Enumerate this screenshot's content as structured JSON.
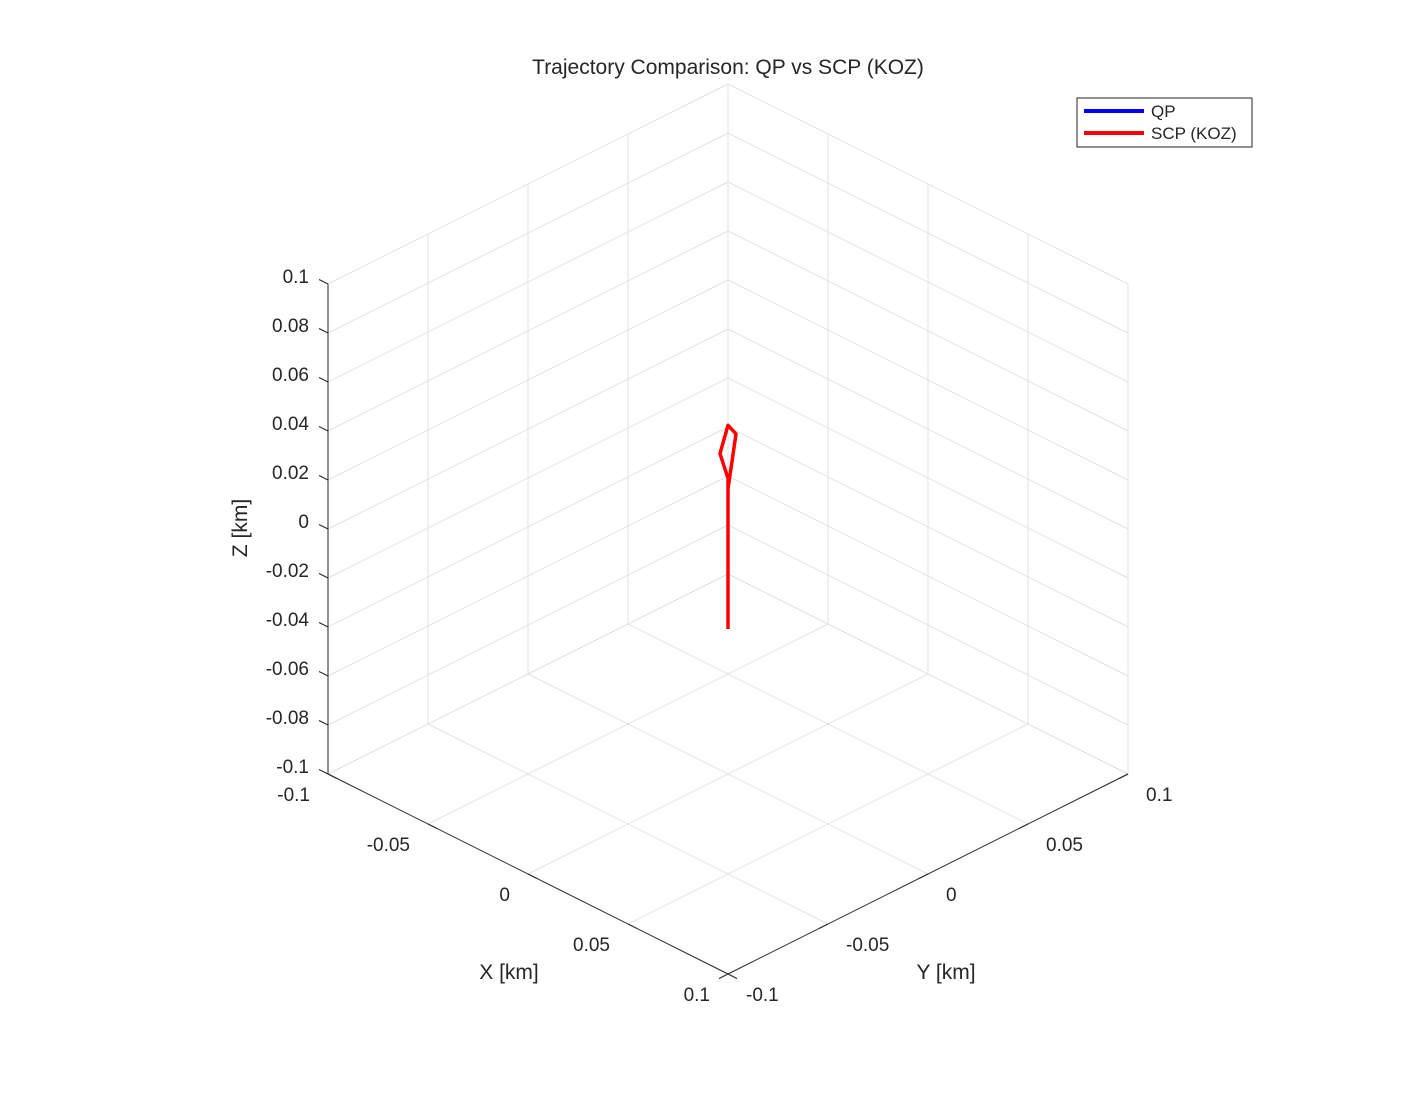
{
  "chart_data": {
    "type": "line",
    "projection": "3d",
    "title": "Trajectory Comparison: QP vs SCP (KOZ)",
    "xlabel": "X [km]",
    "ylabel": "Y [km]",
    "zlabel": "Z [km]",
    "xlim": [
      -0.1,
      0.1
    ],
    "ylim": [
      -0.1,
      0.1
    ],
    "zlim": [
      -0.1,
      0.1
    ],
    "xticks": [
      -0.1,
      -0.05,
      0,
      0.05,
      0.1
    ],
    "yticks": [
      -0.1,
      -0.05,
      0,
      0.05,
      0.1
    ],
    "zticks": [
      -0.1,
      -0.08,
      -0.06,
      -0.04,
      -0.02,
      0,
      0.02,
      0.04,
      0.06,
      0.08,
      0.1
    ],
    "xtick_labels": [
      "-0.1",
      "-0.05",
      "0",
      "0.05",
      "0.1"
    ],
    "ytick_labels": [
      "-0.1",
      "-0.05",
      "0",
      "0.05",
      "0.1"
    ],
    "ztick_labels": [
      "-0.1",
      "-0.08",
      "-0.06",
      "-0.04",
      "-0.02",
      "0",
      "0.02",
      "0.04",
      "0.06",
      "0.08",
      "0.1"
    ],
    "grid": true,
    "legend_position": "top-right",
    "series": [
      {
        "name": "QP",
        "color": "#0000ff",
        "points": []
      },
      {
        "name": "SCP (KOZ)",
        "color": "#ff0000",
        "points": [
          {
            "x": 0.05,
            "y": -0.05,
            "z": 0.0
          },
          {
            "x": 0.0,
            "y": 0.0,
            "z": 0.0
          },
          {
            "x": -0.02,
            "y": 0.02,
            "z": 0.0
          },
          {
            "x": -0.048,
            "y": 0.052,
            "z": -0.002
          },
          {
            "x": -0.058,
            "y": 0.058,
            "z": -0.005
          },
          {
            "x": -0.052,
            "y": 0.048,
            "z": -0.01
          },
          {
            "x": -0.04,
            "y": 0.04,
            "z": -0.012
          },
          {
            "x": -0.03,
            "y": 0.03,
            "z": -0.012
          }
        ]
      }
    ]
  }
}
